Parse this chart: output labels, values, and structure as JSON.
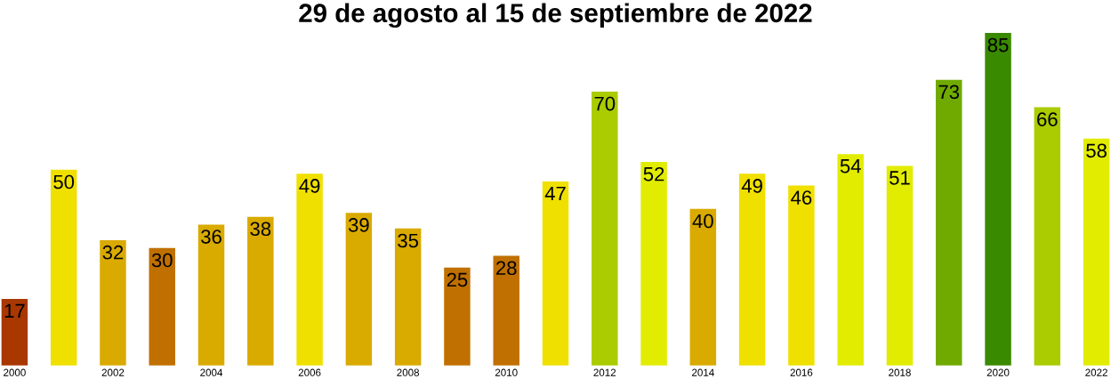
{
  "chart_data": {
    "type": "bar",
    "title": "29 de agosto al 15 de septiembre de 2022",
    "x": [
      2000,
      2001,
      2002,
      2003,
      2004,
      2005,
      2006,
      2007,
      2008,
      2009,
      2010,
      2011,
      2012,
      2013,
      2014,
      2015,
      2016,
      2017,
      2018,
      2019,
      2020,
      2021,
      2022
    ],
    "values": [
      17,
      50,
      32,
      30,
      36,
      38,
      49,
      39,
      35,
      25,
      28,
      47,
      70,
      52,
      40,
      49,
      46,
      54,
      51,
      73,
      85,
      66,
      58
    ],
    "colors": [
      "#a83800",
      "#f0e000",
      "#d9aa00",
      "#c07000",
      "#d9aa00",
      "#d9aa00",
      "#f0e000",
      "#d9aa00",
      "#d9aa00",
      "#c07000",
      "#c07000",
      "#f0e000",
      "#aacc00",
      "#e2ec00",
      "#d9aa00",
      "#f0e000",
      "#f0e000",
      "#e2ec00",
      "#e2ec00",
      "#70aa00",
      "#3a8a00",
      "#aacc00",
      "#e2ec00"
    ],
    "xlim": [
      2000,
      2022
    ],
    "ylim": [
      0,
      85
    ],
    "xticks": [
      2000,
      2002,
      2004,
      2006,
      2008,
      2010,
      2012,
      2014,
      2016,
      2018,
      2020,
      2022
    ],
    "data_labels": true
  }
}
